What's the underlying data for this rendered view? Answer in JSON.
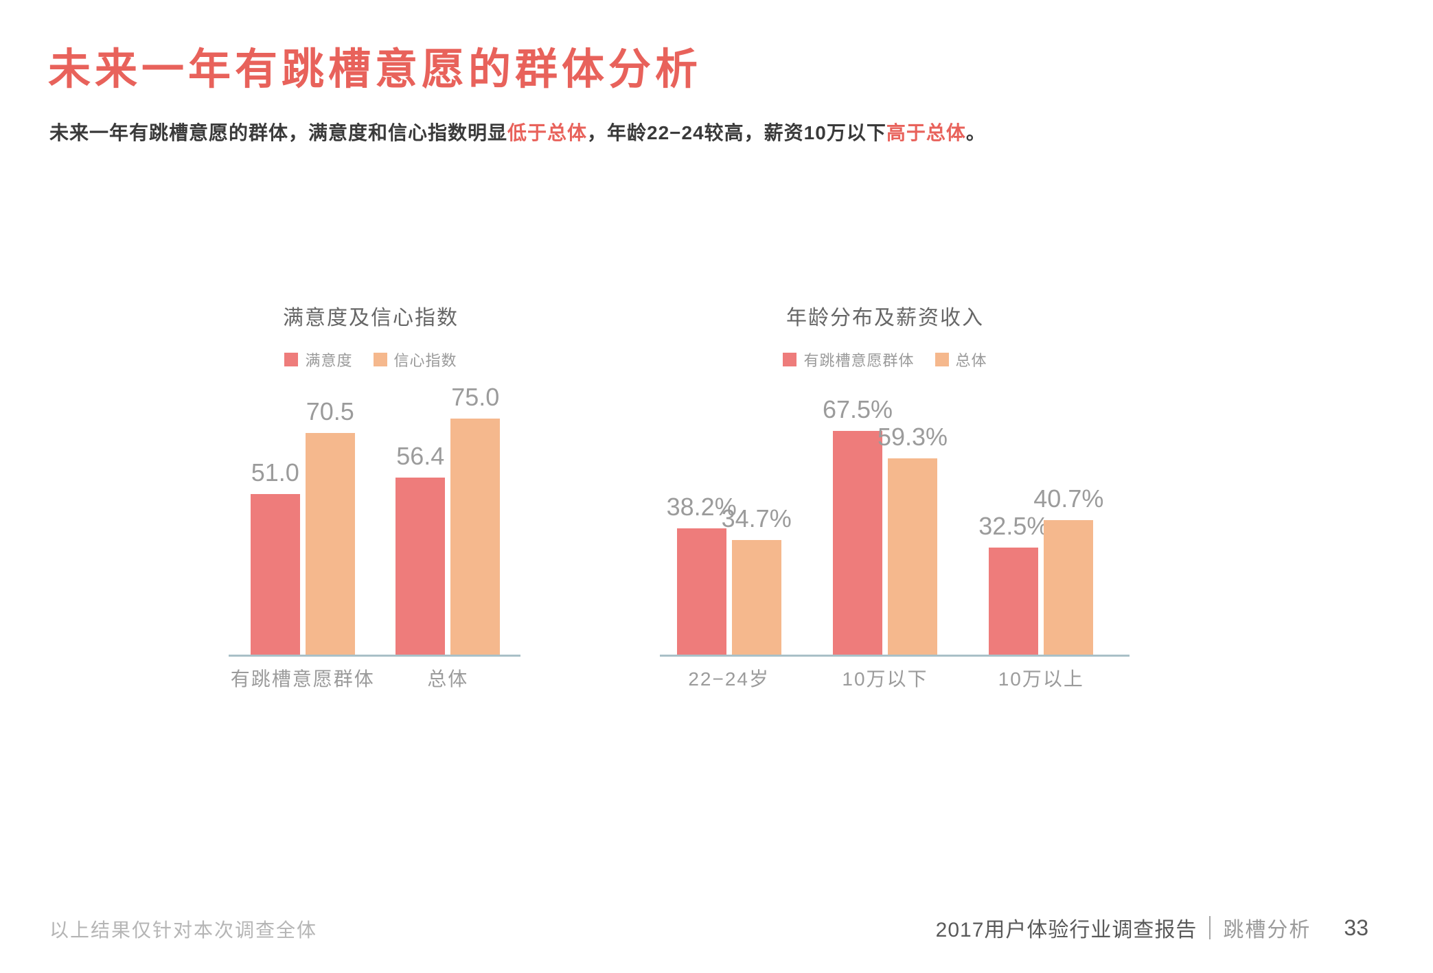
{
  "page": {
    "title": "未来一年有跳槽意愿的群体分析",
    "subtitle_parts": [
      {
        "text": "未来一年有跳槽意愿的群体，满意度和信心指数明显",
        "highlight": false
      },
      {
        "text": "低于总体",
        "highlight": true
      },
      {
        "text": "，年龄22−24较高，薪资10万以下",
        "highlight": false
      },
      {
        "text": "高于总体",
        "highlight": true
      },
      {
        "text": "。",
        "highlight": false
      }
    ]
  },
  "colors": {
    "accent_red": "#E8625B",
    "bar_red": "#EE7C7B",
    "bar_orange": "#F5B88D",
    "axis_line": "#A9C0C7",
    "label_gray": "#9B9B9B"
  },
  "chart_data": [
    {
      "type": "bar",
      "title": "满意度及信心指数",
      "categories": [
        "有跳槽意愿群体",
        "总体"
      ],
      "series": [
        {
          "name": "满意度",
          "color": "#EE7C7B",
          "values": [
            51.0,
            56.4
          ]
        },
        {
          "name": "信心指数",
          "color": "#F5B88D",
          "values": [
            70.5,
            75.0
          ]
        }
      ],
      "value_suffix": "",
      "ylim": [
        0,
        80
      ],
      "grid": false,
      "legend_position": "top"
    },
    {
      "type": "bar",
      "title": "年龄分布及薪资收入",
      "categories": [
        "22−24岁",
        "10万以下",
        "10万以上"
      ],
      "series": [
        {
          "name": "有跳槽意愿群体",
          "color": "#EE7C7B",
          "values": [
            38.2,
            67.5,
            32.5
          ]
        },
        {
          "name": "总体",
          "color": "#F5B88D",
          "values": [
            34.7,
            59.3,
            40.7
          ]
        }
      ],
      "value_suffix": "%",
      "ylim": [
        0,
        76
      ],
      "grid": false,
      "legend_position": "top"
    }
  ],
  "footer": {
    "left_note": "以上结果仅针对本次调查全体",
    "report_title": "2017用户体验行业调查报告",
    "section": "跳槽分析",
    "page_number": "33"
  }
}
